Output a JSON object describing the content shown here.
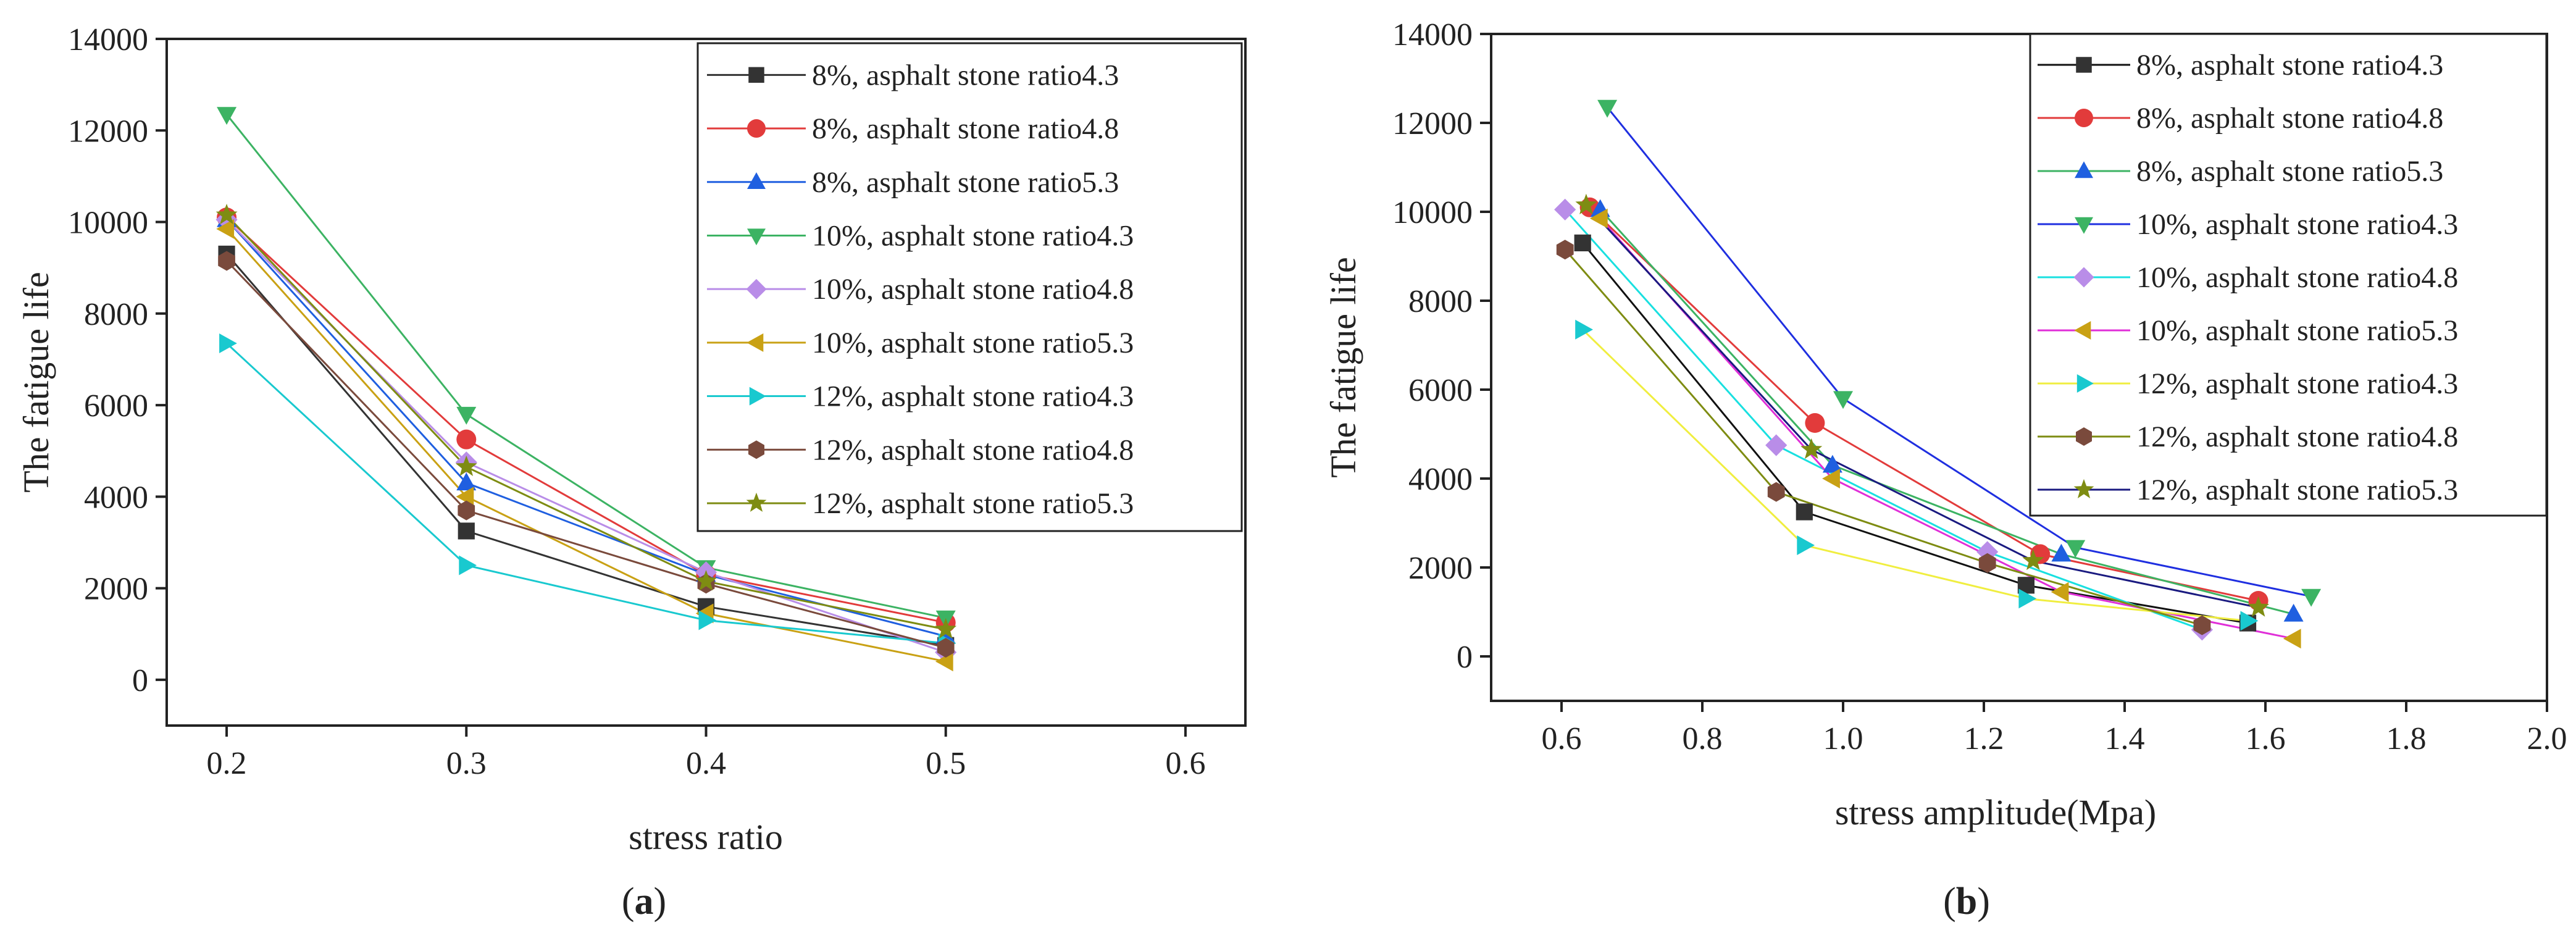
{
  "series_names": [
    "8%, asphalt stone ratio4.3",
    "8%, asphalt stone ratio4.8",
    "8%, asphalt stone ratio5.3",
    "10%, asphalt stone ratio4.3",
    "10%, asphalt stone ratio4.8",
    "10%, asphalt stone ratio5.3",
    "12%, asphalt stone ratio4.3",
    "12%, asphalt stone ratio4.8",
    "12%, asphalt stone ratio5.3"
  ],
  "series_style": [
    {
      "color": "#333333",
      "line": "#333333",
      "marker": "square"
    },
    {
      "color": "#e23b3b",
      "line": "#e23b3b",
      "marker": "circle"
    },
    {
      "color": "#1f5fe0",
      "line": "#1f5fe0",
      "marker": "triangle-up"
    },
    {
      "color": "#3cb363",
      "line": "#3cb363",
      "marker": "triangle-down"
    },
    {
      "color": "#b98de8",
      "line": "#b98de8",
      "marker": "diamond"
    },
    {
      "color": "#c9a114",
      "line": "#c9a114",
      "marker": "triangle-left"
    },
    {
      "color": "#19c9cf",
      "line": "#19c9cf",
      "marker": "triangle-right"
    },
    {
      "color": "#7a4a3c",
      "line": "#7a4a3c",
      "marker": "hexagon"
    },
    {
      "color": "#7e8c12",
      "line": "#7e8c12",
      "marker": "star"
    }
  ],
  "series_style_b": [
    {
      "color": "#333333",
      "line": "#111111"
    },
    {
      "color": "#e23b3b",
      "line": "#e23b3b"
    },
    {
      "color": "#1f5fe0",
      "line": "#3cb363"
    },
    {
      "color": "#3cb363",
      "line": "#1f2fe0"
    },
    {
      "color": "#b98de8",
      "line": "#19e0e0"
    },
    {
      "color": "#c9a114",
      "line": "#e02fd8"
    },
    {
      "color": "#19c9cf",
      "line": "#f0ee40"
    },
    {
      "color": "#7a4a3c",
      "line": "#7e8c12"
    },
    {
      "color": "#7e8c12",
      "line": "#1a1a80"
    }
  ],
  "chart_data": [
    {
      "type": "line",
      "caption_letter": "a",
      "caption": "(a)",
      "xlabel": "stress ratio",
      "ylabel": "The fatigue life",
      "xlim": [
        0.175,
        0.625
      ],
      "ylim": [
        -1000,
        14000
      ],
      "xticks": [
        0.2,
        0.3,
        0.4,
        0.5,
        0.6
      ],
      "xtick_labels": [
        "0.2",
        "0.3",
        "0.4",
        "0.5",
        "0.6"
      ],
      "yticks": [
        0,
        2000,
        4000,
        6000,
        8000,
        10000,
        12000,
        14000
      ],
      "ytick_labels": [
        "0",
        "2000",
        "4000",
        "6000",
        "8000",
        "10000",
        "12000",
        "14000"
      ],
      "legend_position": "top-right",
      "series": [
        {
          "name": "8%, asphalt stone ratio4.3",
          "x": [
            0.2,
            0.3,
            0.4,
            0.5
          ],
          "y": [
            9300,
            3250,
            1600,
            750
          ]
        },
        {
          "name": "8%, asphalt stone ratio4.8",
          "x": [
            0.2,
            0.3,
            0.4,
            0.5
          ],
          "y": [
            10100,
            5250,
            2300,
            1250
          ]
        },
        {
          "name": "8%, asphalt stone ratio5.3",
          "x": [
            0.2,
            0.3,
            0.4,
            0.5
          ],
          "y": [
            10050,
            4300,
            2300,
            950
          ]
        },
        {
          "name": "10%, asphalt stone ratio4.3",
          "x": [
            0.2,
            0.3,
            0.4,
            0.5
          ],
          "y": [
            12350,
            5800,
            2450,
            1350
          ]
        },
        {
          "name": "10%, asphalt stone ratio4.8",
          "x": [
            0.2,
            0.3,
            0.4,
            0.5
          ],
          "y": [
            10050,
            4750,
            2350,
            600
          ]
        },
        {
          "name": "10%, asphalt stone ratio5.3",
          "x": [
            0.2,
            0.3,
            0.4,
            0.5
          ],
          "y": [
            9850,
            4000,
            1450,
            400
          ]
        },
        {
          "name": "12%, asphalt stone ratio4.3",
          "x": [
            0.2,
            0.3,
            0.4,
            0.5
          ],
          "y": [
            7350,
            2500,
            1300,
            800
          ]
        },
        {
          "name": "12%, asphalt stone ratio4.8",
          "x": [
            0.2,
            0.3,
            0.4,
            0.5
          ],
          "y": [
            9150,
            3700,
            2100,
            700
          ]
        },
        {
          "name": "12%, asphalt stone ratio5.3",
          "x": [
            0.2,
            0.3,
            0.4,
            0.5
          ],
          "y": [
            10150,
            4650,
            2150,
            1100
          ]
        }
      ]
    },
    {
      "type": "line",
      "caption_letter": "b",
      "caption": "(b)",
      "xlabel": "stress amplitude(Mpa)",
      "ylabel": "The fatigue life",
      "xlim": [
        0.5,
        2.0
      ],
      "ylim": [
        -1000,
        14000
      ],
      "xticks": [
        0.6,
        0.8,
        1.0,
        1.2,
        1.4,
        1.6,
        1.8,
        2.0
      ],
      "xtick_labels": [
        "0.6",
        "0.8",
        "1.0",
        "1.2",
        "1.4",
        "1.6",
        "1.8",
        "2.0"
      ],
      "yticks": [
        0,
        2000,
        4000,
        6000,
        8000,
        10000,
        12000,
        14000
      ],
      "ytick_labels": [
        "0",
        "2000",
        "4000",
        "6000",
        "8000",
        "10000",
        "12000",
        "14000"
      ],
      "legend_position": "top-right",
      "series": [
        {
          "name": "8%, asphalt stone ratio4.3",
          "x": [
            0.63,
            0.945,
            1.26,
            1.575
          ],
          "y": [
            9300,
            3250,
            1600,
            750
          ]
        },
        {
          "name": "8%, asphalt stone ratio4.8",
          "x": [
            0.64,
            0.96,
            1.28,
            1.59
          ],
          "y": [
            10100,
            5250,
            2300,
            1250
          ]
        },
        {
          "name": "8%, asphalt stone ratio5.3",
          "x": [
            0.655,
            0.985,
            1.31,
            1.64
          ],
          "y": [
            10050,
            4300,
            2300,
            950
          ]
        },
        {
          "name": "10%, asphalt stone ratio4.3",
          "x": [
            0.665,
            1.0,
            1.33,
            1.665
          ],
          "y": [
            12350,
            5800,
            2450,
            1350
          ]
        },
        {
          "name": "10%, asphalt stone ratio4.8",
          "x": [
            0.605,
            0.905,
            1.205,
            1.51
          ],
          "y": [
            10050,
            4750,
            2350,
            600
          ]
        },
        {
          "name": "10%, asphalt stone ratio5.3",
          "x": [
            0.655,
            0.985,
            1.31,
            1.64
          ],
          "y": [
            9850,
            4000,
            1450,
            400
          ]
        },
        {
          "name": "12%, asphalt stone ratio4.3",
          "x": [
            0.63,
            0.945,
            1.26,
            1.575
          ],
          "y": [
            7350,
            2500,
            1300,
            800
          ]
        },
        {
          "name": "12%, asphalt stone ratio4.8",
          "x": [
            0.605,
            0.905,
            1.205,
            1.51
          ],
          "y": [
            9150,
            3700,
            2100,
            700
          ]
        },
        {
          "name": "12%, asphalt stone ratio5.3",
          "x": [
            0.635,
            0.955,
            1.27,
            1.59
          ],
          "y": [
            10150,
            4650,
            2150,
            1100
          ]
        }
      ]
    }
  ]
}
